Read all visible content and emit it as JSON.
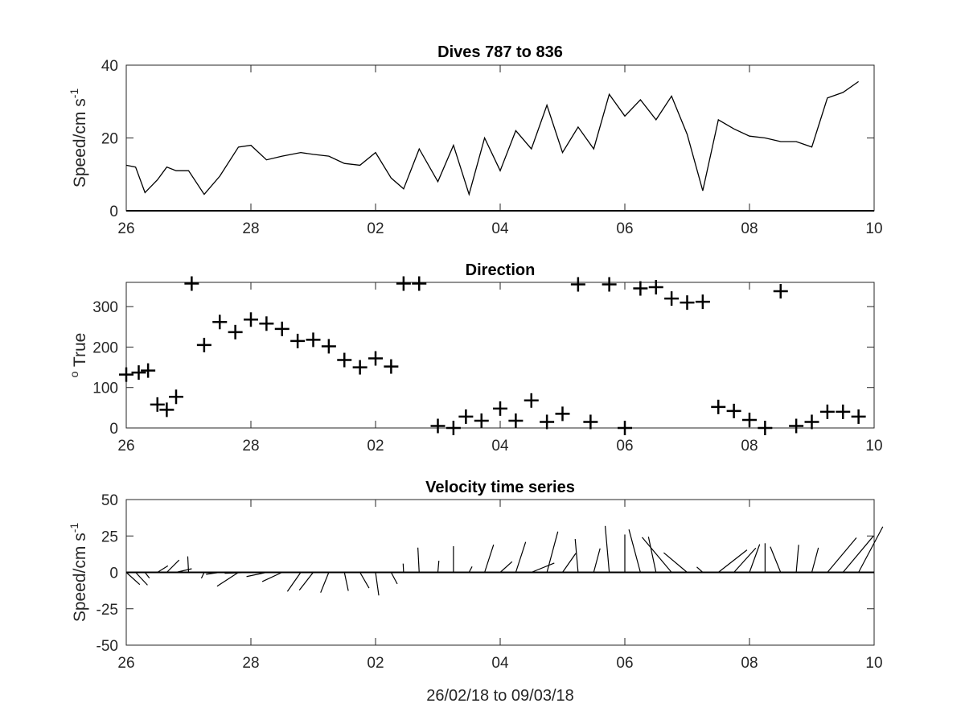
{
  "xlabel": "26/02/18 to 09/03/18",
  "chart_data": [
    {
      "type": "line",
      "title": "Dives 787 to 836",
      "ylabel": "Speed/cm s",
      "ylabel_sup": "-1",
      "xlim": [
        0,
        12
      ],
      "ylim": [
        0,
        40
      ],
      "x_tick_values": [
        0,
        2,
        4,
        6,
        8,
        10,
        12
      ],
      "x_tick_labels": [
        "26",
        "28",
        "02",
        "04",
        "06",
        "08",
        "10"
      ],
      "y_tick_values": [
        0,
        20,
        40
      ],
      "y_tick_labels": [
        "0",
        "20",
        "40"
      ],
      "x": [
        0.0,
        0.15,
        0.3,
        0.5,
        0.65,
        0.8,
        1.0,
        1.25,
        1.5,
        1.8,
        2.0,
        2.25,
        2.5,
        2.8,
        3.0,
        3.25,
        3.5,
        3.75,
        4.0,
        4.25,
        4.45,
        4.7,
        5.0,
        5.25,
        5.5,
        5.75,
        6.0,
        6.25,
        6.5,
        6.75,
        7.0,
        7.25,
        7.5,
        7.75,
        8.0,
        8.25,
        8.5,
        8.75,
        9.0,
        9.25,
        9.5,
        9.75,
        10.0,
        10.25,
        10.5,
        10.75,
        11.0,
        11.25,
        11.5,
        11.75
      ],
      "values": [
        12.5,
        12,
        5,
        8.5,
        12,
        11,
        11,
        4.5,
        9.5,
        17.5,
        18,
        14,
        15,
        16,
        15.5,
        15,
        13,
        12.5,
        16,
        9,
        6,
        17,
        8,
        18,
        4.5,
        20,
        11,
        22,
        17,
        29,
        16,
        23,
        17,
        32,
        26,
        30.5,
        25,
        31.5,
        21,
        5.5,
        25,
        22.5,
        20.5,
        20,
        19,
        19,
        17.5,
        31,
        32.5,
        35.5
      ]
    },
    {
      "type": "scatter",
      "title": "Direction",
      "ylabel": "True",
      "ylabel_sup": "o",
      "xlim": [
        0,
        12
      ],
      "ylim": [
        0,
        360
      ],
      "x_tick_values": [
        0,
        2,
        4,
        6,
        8,
        10,
        12
      ],
      "x_tick_labels": [
        "26",
        "28",
        "02",
        "04",
        "06",
        "08",
        "10"
      ],
      "y_tick_values": [
        0,
        100,
        200,
        300
      ],
      "y_tick_labels": [
        "0",
        "100",
        "200",
        "300"
      ],
      "x": [
        0.0,
        0.2,
        0.35,
        0.5,
        0.65,
        0.8,
        1.05,
        1.25,
        1.5,
        1.75,
        2.0,
        2.25,
        2.5,
        2.75,
        3.0,
        3.25,
        3.5,
        3.75,
        4.0,
        4.25,
        4.45,
        4.7,
        5.0,
        5.25,
        5.45,
        5.7,
        6.0,
        6.25,
        6.5,
        6.75,
        7.0,
        7.25,
        7.45,
        7.75,
        8.0,
        8.25,
        8.5,
        8.75,
        9.0,
        9.25,
        9.5,
        9.75,
        10.0,
        10.25,
        10.5,
        10.75,
        11.0,
        11.25,
        11.5,
        11.75
      ],
      "values": [
        132,
        137,
        142,
        58,
        45,
        77,
        357,
        205,
        262,
        237,
        268,
        258,
        245,
        215,
        218,
        202,
        168,
        150,
        172,
        152,
        357,
        357,
        5,
        0,
        28,
        18,
        48,
        18,
        68,
        15,
        35,
        355,
        15,
        355,
        0,
        345,
        348,
        320,
        310,
        312,
        52,
        42,
        20,
        0,
        338,
        5,
        15,
        40,
        40,
        28
      ]
    },
    {
      "type": "line",
      "title": "Velocity time series",
      "ylabel": "Speed/cm s",
      "ylabel_sup": "-1",
      "xlim": [
        0,
        12
      ],
      "ylim": [
        -50,
        50
      ],
      "x_tick_values": [
        0,
        2,
        4,
        6,
        8,
        10,
        12
      ],
      "x_tick_labels": [
        "26",
        "28",
        "02",
        "04",
        "06",
        "08",
        "10"
      ],
      "y_tick_values": [
        -50,
        -25,
        0,
        25,
        50
      ],
      "y_tick_labels": [
        "-50",
        "-25",
        "0",
        "25",
        "50"
      ]
    }
  ]
}
